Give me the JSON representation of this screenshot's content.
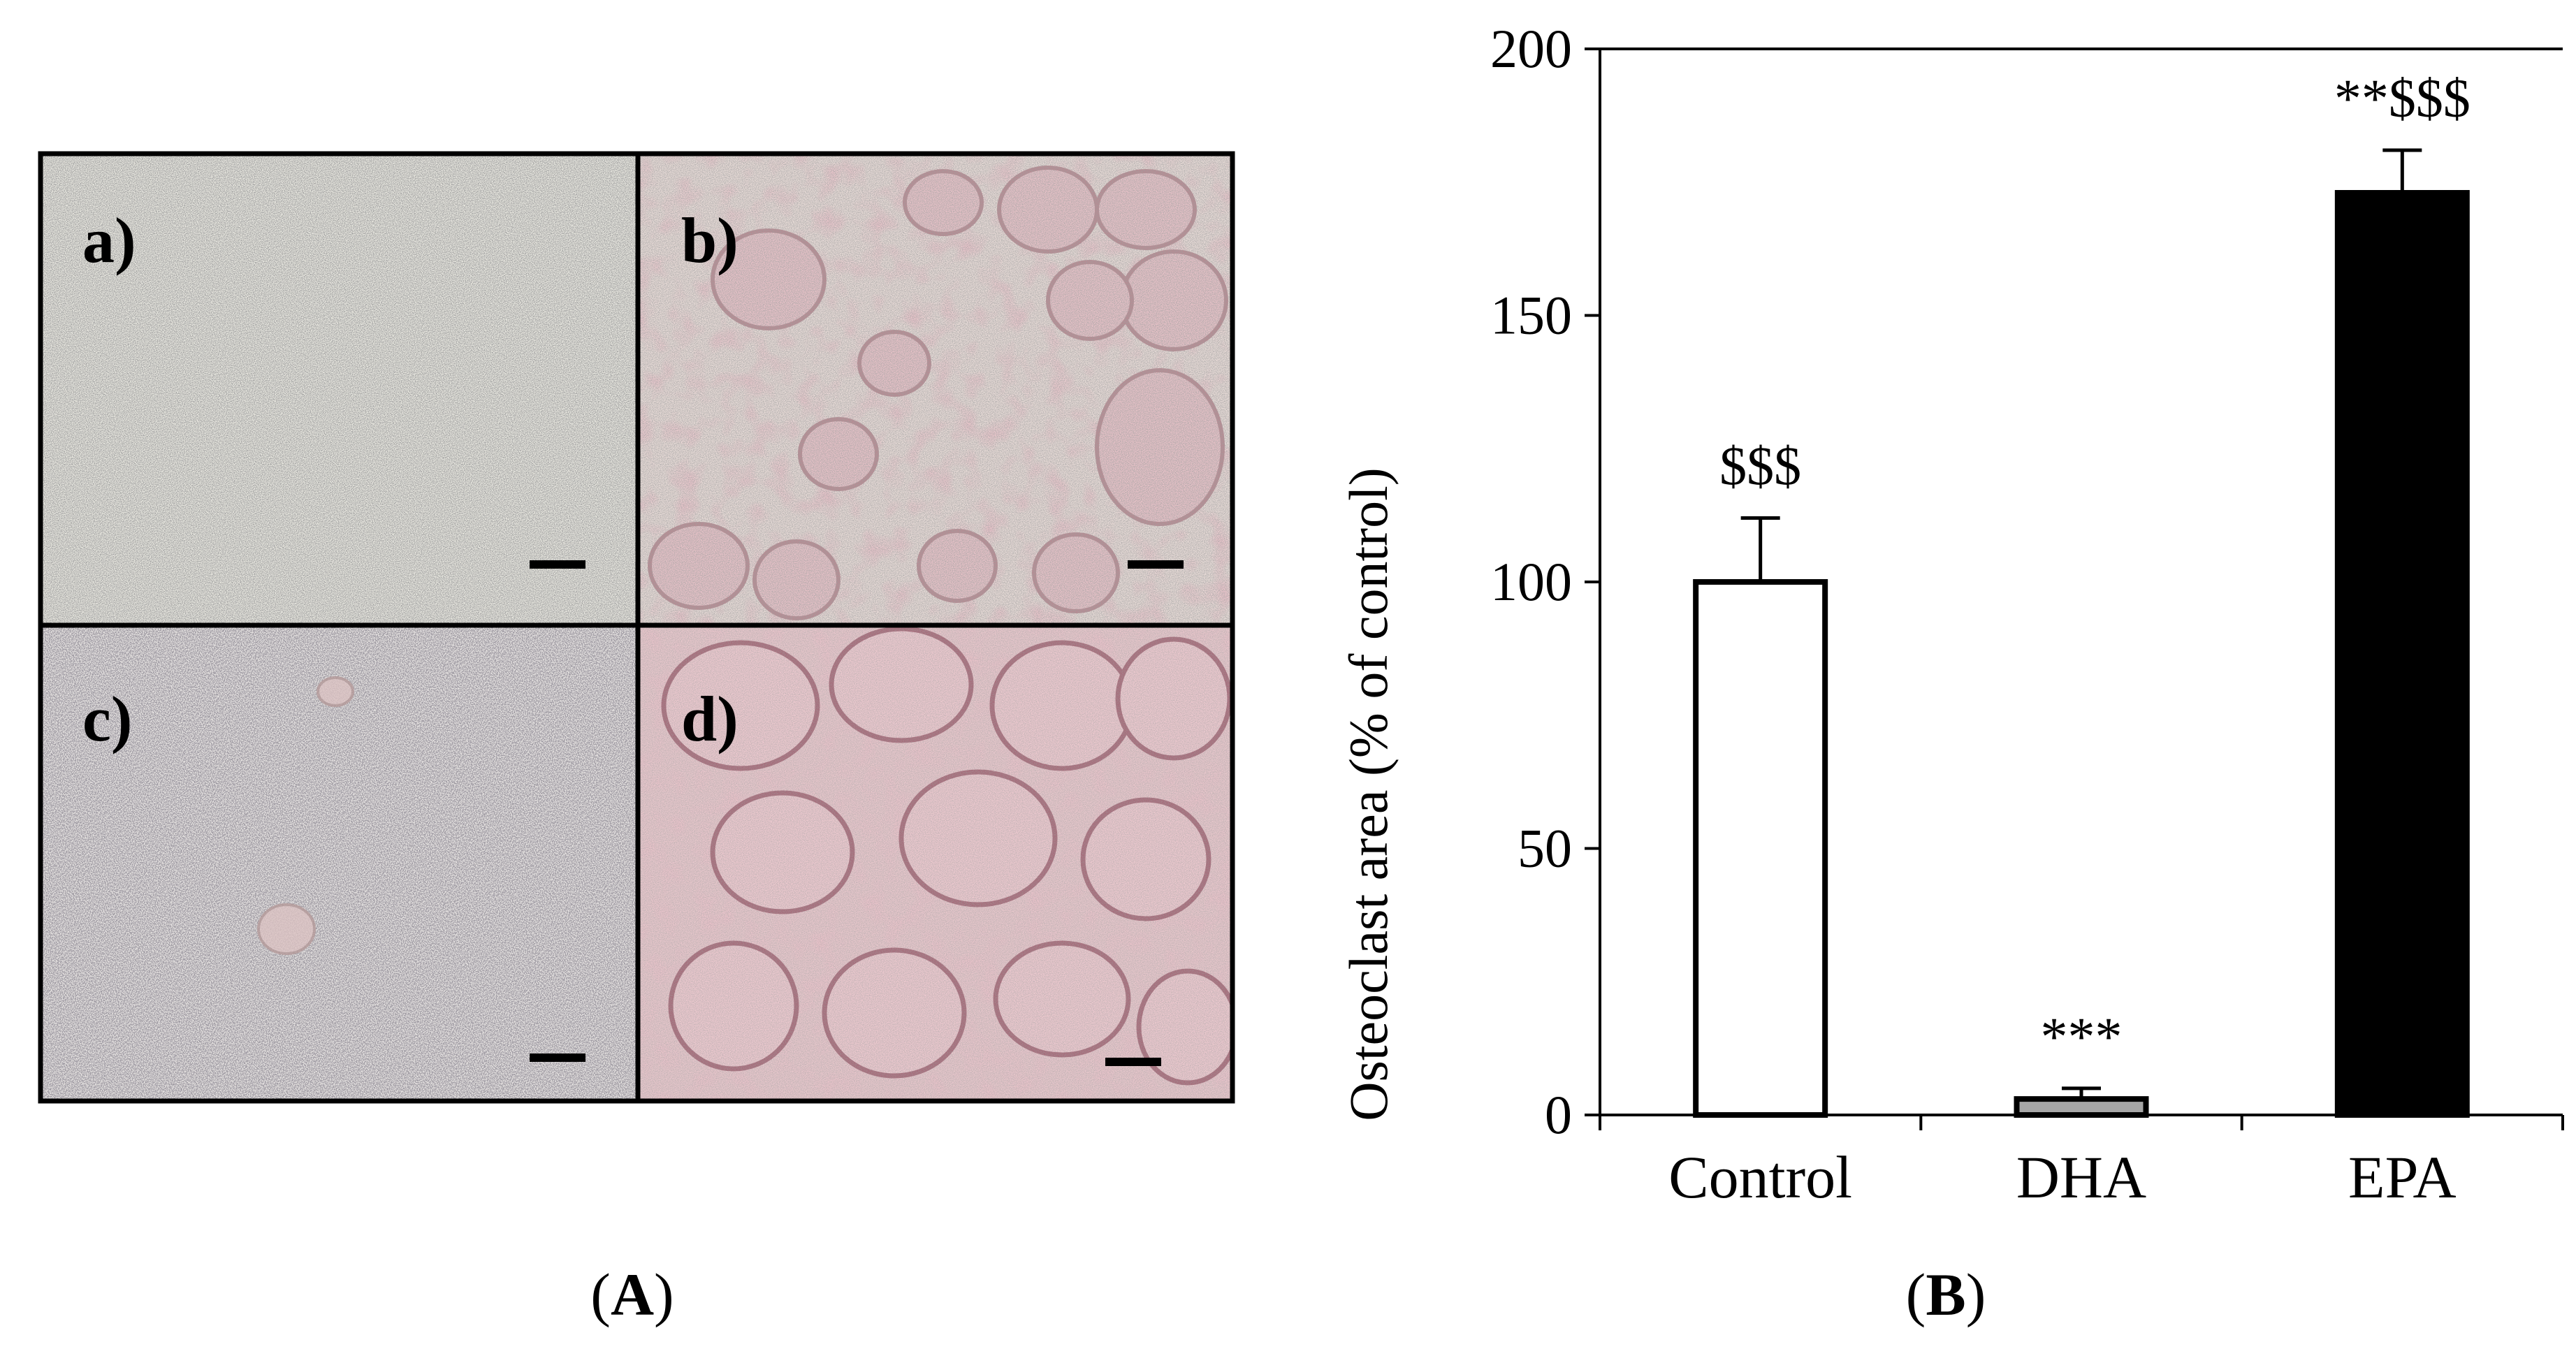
{
  "panel_a": {
    "label_open": "(",
    "label_letter": "A",
    "label_close": ")",
    "subpanels": [
      {
        "label": "a)"
      },
      {
        "label": "b)"
      },
      {
        "label": "c)"
      },
      {
        "label": "d)"
      }
    ]
  },
  "panel_b": {
    "label_open": "(",
    "label_letter": "B",
    "label_close": ")"
  },
  "chart_data": {
    "type": "bar",
    "categories": [
      "Control",
      "DHA",
      "EPA"
    ],
    "values": [
      100,
      3,
      173
    ],
    "errors": [
      12,
      2,
      8
    ],
    "annotations": [
      "$$$",
      "***",
      "**$$$"
    ],
    "bar_colors": [
      "#ffffff",
      "#a6a6a6",
      "#000000"
    ],
    "title": "",
    "xlabel": "",
    "ylabel": "Osteoclast area (% of control)",
    "ylim": [
      0,
      200
    ],
    "yticks": [
      0,
      50,
      100,
      150,
      200
    ],
    "grid": false
  }
}
